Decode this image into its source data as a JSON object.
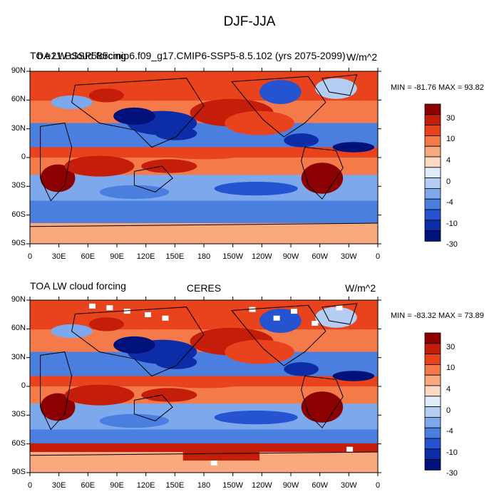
{
  "title": "DJF-JJA",
  "panels": [
    {
      "left_title": "TOA LW cloud forcing",
      "overlap_title": "b.e21.BSSP585cmip6.f09_g17.CMIP6-SSP5-8.5.102 (yrs 2075-2099)",
      "center_title": "",
      "units": "W/m^2",
      "min_max": "MIN = -81.76 MAX =  93.82"
    },
    {
      "left_title": "TOA LW cloud forcing",
      "overlap_title": "",
      "center_title": "CERES",
      "units": "W/m^2",
      "min_max": "MIN = -83.32 MAX =  73.89"
    }
  ],
  "lat_labels": [
    "90N",
    "60N",
    "30N",
    "0",
    "30S",
    "60S",
    "90S"
  ],
  "lon_labels": [
    "0",
    "30E",
    "60E",
    "90E",
    "120E",
    "150E",
    "180",
    "150W",
    "120W",
    "90W",
    "60W",
    "30W",
    "0"
  ],
  "colorbar": {
    "labels": [
      "30",
      "10",
      "4",
      "0",
      "-4",
      "-10",
      "-30"
    ],
    "colors": [
      "#8b0000",
      "#c41e0a",
      "#e8431c",
      "#f47a4a",
      "#f9a97e",
      "#fcd9c2",
      "#e0ecfa",
      "#b4cdf3",
      "#7ea8ec",
      "#4a7fe0",
      "#2653cf",
      "#0d2ca8",
      "#00127a"
    ]
  }
}
